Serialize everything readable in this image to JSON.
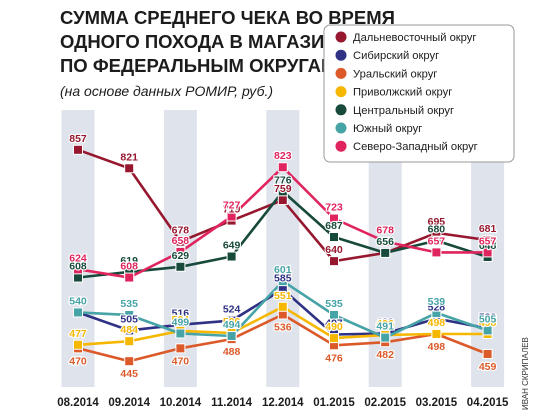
{
  "chart_data": {
    "type": "line",
    "title_lines": [
      "СУММА СРЕДНЕГО ЧЕКА ВО ВРЕМЯ",
      "ОДНОГО ПОХОДА В МАГАЗИН",
      "ПО ФЕДЕРАЛЬНЫМ ОКРУГАМ"
    ],
    "subtitle": "(на основе данных РОМИР, руб.)",
    "credit": "ИВАН СКРИПАЛЕВ",
    "categories": [
      "08.2014",
      "09.2014",
      "10.2014",
      "11.2014",
      "12.2014",
      "01.2015",
      "02.2015",
      "03.2015",
      "04.2015"
    ],
    "ylim": [
      420,
      880
    ],
    "grid": false,
    "legend_position": "top-right",
    "series": [
      {
        "name": "Дальневосточный округ",
        "color": "#96172e",
        "values": [
          857,
          821,
          678,
          719,
          759,
          640,
          656,
          695,
          681
        ]
      },
      {
        "name": "Сибирский округ",
        "color": "#2e3184",
        "values": [
          540,
          505,
          516,
          524,
          585,
          497,
          499,
          528,
          509
        ]
      },
      {
        "name": "Уральский округ",
        "color": "#dc5a2a",
        "values": [
          470,
          445,
          470,
          488,
          536,
          476,
          482,
          498,
          459
        ]
      },
      {
        "name": "Приволжский округ",
        "color": "#f5b700",
        "values": [
          477,
          484,
          504,
          500,
          551,
          490,
          496,
          498,
          498
        ]
      },
      {
        "name": "Центральный округ",
        "color": "#174a3a",
        "values": [
          608,
          619,
          629,
          649,
          776,
          687,
          656,
          680,
          648
        ]
      },
      {
        "name": "Южный округ",
        "color": "#46a3a6",
        "values": [
          540,
          535,
          499,
          494,
          601,
          535,
          491,
          539,
          505
        ]
      },
      {
        "name": "Северо-Западный округ",
        "color": "#e0245e",
        "values": [
          624,
          608,
          658,
          727,
          823,
          723,
          678,
          657,
          657
        ]
      }
    ]
  }
}
